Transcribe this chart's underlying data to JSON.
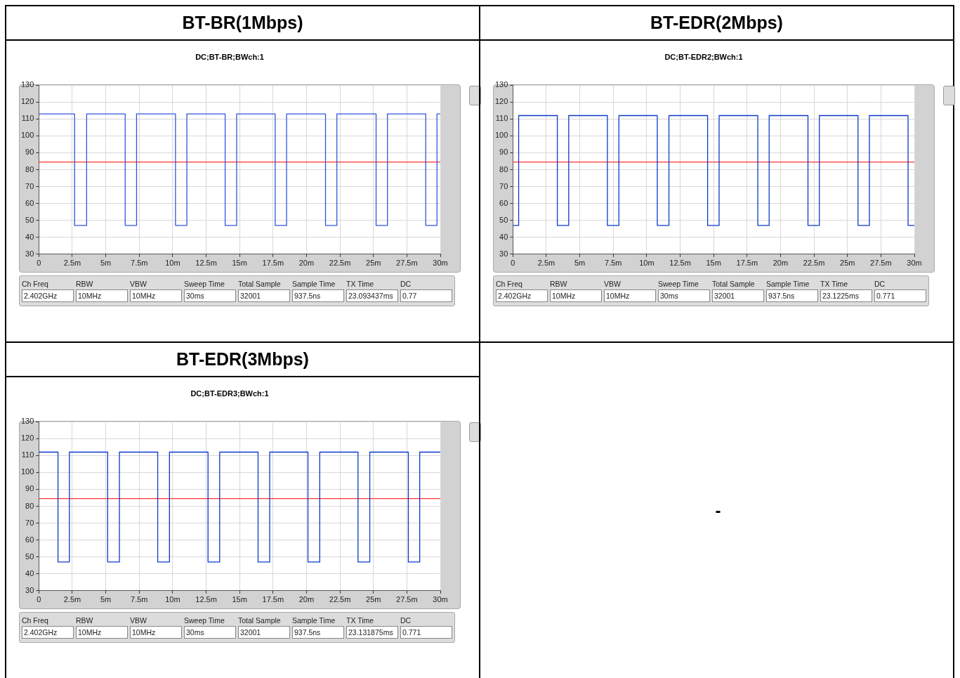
{
  "chart_data": [
    {
      "type": "step",
      "title": "BT-BR(1Mbps)",
      "subtitle": "DC;BT-BR;BWch:1",
      "color": "#2f55dd",
      "x": [
        0,
        2.67,
        3.57,
        6.45,
        7.3,
        10.21,
        11.06,
        13.92,
        14.78,
        17.66,
        18.51,
        21.42,
        22.27,
        25.2,
        26.05,
        28.91,
        29.75,
        30
      ],
      "values": [
        113,
        47,
        113,
        47,
        113,
        47,
        113,
        47,
        113,
        47,
        113,
        47,
        113,
        47,
        113,
        47,
        113,
        113
      ],
      "xlim": [
        0,
        30
      ],
      "xticks": [
        {
          "value": 0,
          "label": "0"
        },
        {
          "value": 2.5,
          "label": "2.5m"
        },
        {
          "value": 5,
          "label": "5m"
        },
        {
          "value": 7.5,
          "label": "7.5m"
        },
        {
          "value": 10,
          "label": "10m"
        },
        {
          "value": 12.5,
          "label": "12.5m"
        },
        {
          "value": 15,
          "label": "15m"
        },
        {
          "value": 17.5,
          "label": "17.5m"
        },
        {
          "value": 20,
          "label": "20m"
        },
        {
          "value": 22.5,
          "label": "22.5m"
        },
        {
          "value": 25,
          "label": "25m"
        },
        {
          "value": 27.5,
          "label": "27.5m"
        },
        {
          "value": 30,
          "label": "30m"
        }
      ],
      "ylim": [
        30,
        130
      ],
      "yticks": [
        30,
        40,
        50,
        60,
        70,
        80,
        90,
        100,
        110,
        120,
        130
      ],
      "grid": true,
      "ref_lines": [
        {
          "axis": "y",
          "value": 84.5,
          "color": "#ff3333"
        }
      ],
      "annotations": [
        "Ch Freq",
        "RBW",
        "VBW",
        "Sweep Time",
        "Total Sample",
        "Sample Time",
        "TX Time",
        "DC",
        "2.402GHz",
        "10MHz",
        "10MHz",
        "30ms",
        "32001",
        "937.5ns",
        "23.093437ms",
        "0.77"
      ]
    },
    {
      "type": "step",
      "title": "BT-EDR(2Mbps)",
      "subtitle": "DC;BT-EDR2;BWch:1",
      "color": "#0a3acc",
      "x": [
        0,
        0.43,
        3.32,
        4.17,
        7.06,
        7.92,
        10.79,
        11.66,
        14.55,
        15.41,
        18.3,
        19.15,
        22.05,
        22.9,
        25.79,
        26.64,
        29.53,
        30
      ],
      "values": [
        47,
        112,
        47,
        112,
        47,
        112,
        47,
        112,
        47,
        112,
        47,
        112,
        47,
        112,
        47,
        112,
        47,
        47
      ],
      "xlim": [
        0,
        30
      ],
      "xticks": [
        {
          "value": 0,
          "label": "0"
        },
        {
          "value": 2.5,
          "label": "2.5m"
        },
        {
          "value": 5,
          "label": "5m"
        },
        {
          "value": 7.5,
          "label": "7.5m"
        },
        {
          "value": 10,
          "label": "10m"
        },
        {
          "value": 12.5,
          "label": "12.5m"
        },
        {
          "value": 15,
          "label": "15m"
        },
        {
          "value": 17.5,
          "label": "17.5m"
        },
        {
          "value": 20,
          "label": "20m"
        },
        {
          "value": 22.5,
          "label": "22.5m"
        },
        {
          "value": 25,
          "label": "25m"
        },
        {
          "value": 27.5,
          "label": "27.5m"
        },
        {
          "value": 30,
          "label": "30m"
        }
      ],
      "ylim": [
        30,
        130
      ],
      "yticks": [
        30,
        40,
        50,
        60,
        70,
        80,
        90,
        100,
        110,
        120,
        130
      ],
      "grid": true,
      "ref_lines": [
        {
          "axis": "y",
          "value": 84.5,
          "color": "#ff3333"
        }
      ],
      "annotations": [
        "Ch Freq",
        "RBW",
        "VBW",
        "Sweep Time",
        "Total Sample",
        "Sample Time",
        "TX Time",
        "DC",
        "2.402GHz",
        "10MHz",
        "10MHz",
        "30ms",
        "32001",
        "937.5ns",
        "23.1225ms",
        "0.771"
      ]
    },
    {
      "type": "step",
      "title": "BT-EDR(3Mbps)",
      "subtitle": "DC;BT-EDR3;BWch:1",
      "color": "#0a3acc",
      "x": [
        0,
        1.43,
        2.28,
        5.14,
        6.02,
        8.88,
        9.76,
        12.64,
        13.51,
        16.38,
        17.25,
        20.11,
        20.99,
        23.85,
        24.73,
        27.61,
        28.46,
        30
      ],
      "values": [
        112,
        47,
        112,
        47,
        112,
        47,
        112,
        47,
        112,
        47,
        112,
        47,
        112,
        47,
        112,
        47,
        112,
        112
      ],
      "xlim": [
        0,
        30
      ],
      "xticks": [
        {
          "value": 0,
          "label": "0"
        },
        {
          "value": 2.5,
          "label": "2.5m"
        },
        {
          "value": 5,
          "label": "5m"
        },
        {
          "value": 7.5,
          "label": "7.5m"
        },
        {
          "value": 10,
          "label": "10m"
        },
        {
          "value": 12.5,
          "label": "12.5m"
        },
        {
          "value": 15,
          "label": "15m"
        },
        {
          "value": 17.5,
          "label": "17.5m"
        },
        {
          "value": 20,
          "label": "20m"
        },
        {
          "value": 22.5,
          "label": "22.5m"
        },
        {
          "value": 25,
          "label": "25m"
        },
        {
          "value": 27.5,
          "label": "27.5m"
        },
        {
          "value": 30,
          "label": "30m"
        }
      ],
      "ylim": [
        30,
        130
      ],
      "yticks": [
        30,
        40,
        50,
        60,
        70,
        80,
        90,
        100,
        110,
        120,
        130
      ],
      "grid": true,
      "ref_lines": [
        {
          "axis": "y",
          "value": 84.5,
          "color": "#ff3333"
        }
      ],
      "annotations": [
        "Ch Freq",
        "RBW",
        "VBW",
        "Sweep Time",
        "Total Sample",
        "Sample Time",
        "TX Time",
        "DC",
        "2.402GHz",
        "10MHz",
        "10MHz",
        "30ms",
        "32001",
        "937.5ns",
        "23.131875ms",
        "0.771"
      ]
    },
    {
      "type": "other",
      "annotations": [
        "-"
      ]
    }
  ]
}
